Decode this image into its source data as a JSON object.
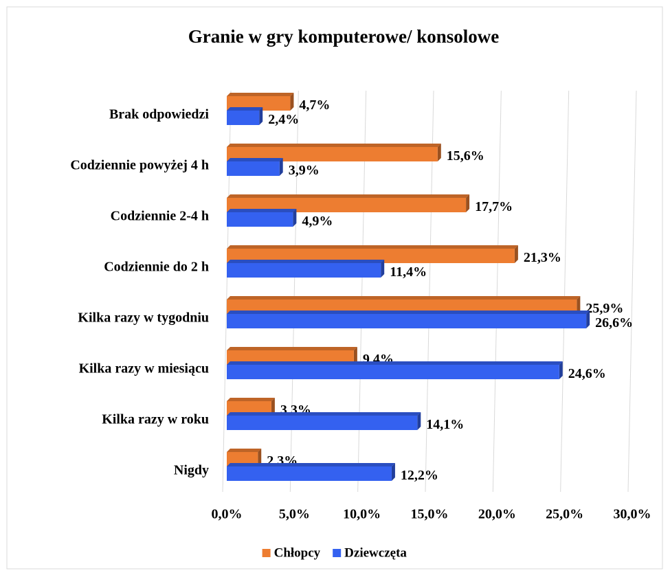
{
  "chart_data": {
    "type": "bar",
    "orientation": "horizontal",
    "title": "Granie w gry komputerowe/ konsolowe",
    "categories": [
      "Brak odpowiedzi",
      "Codziennie powyżej 4 h",
      "Codziennie 2-4 h",
      "Codziennie do 2 h",
      "Kilka razy w tygodniu",
      "Kilka razy w miesiącu",
      "Kilka razy w roku",
      "Nigdy"
    ],
    "series": [
      {
        "name": "Chłopcy",
        "color": "#ed7d31",
        "values": [
          4.7,
          15.6,
          17.7,
          21.3,
          25.9,
          9.4,
          3.3,
          2.3
        ],
        "value_labels": [
          "4,7%",
          "15,6%",
          "17,7%",
          "21,3%",
          "25,9%",
          "9,4%",
          "3,3%",
          "2,3%"
        ]
      },
      {
        "name": "Dziewczęta",
        "color": "#3461f0",
        "values": [
          2.4,
          3.9,
          4.9,
          11.4,
          26.6,
          24.6,
          14.1,
          12.2
        ],
        "value_labels": [
          "2,4%",
          "3,9%",
          "4,9%",
          "11,4%",
          "26,6%",
          "24,6%",
          "14,1%",
          "12,2%"
        ]
      }
    ],
    "xlim": [
      0,
      30
    ],
    "xticks": [
      {
        "value": 0,
        "label": "0,0%"
      },
      {
        "value": 5,
        "label": "5,0%"
      },
      {
        "value": 10,
        "label": "10,0%"
      },
      {
        "value": 15,
        "label": "15,0%"
      },
      {
        "value": 20,
        "label": "20,0%"
      },
      {
        "value": 25,
        "label": "25,0%"
      },
      {
        "value": 30,
        "label": "30,0%"
      }
    ],
    "grid": true,
    "legend": "bottom"
  }
}
